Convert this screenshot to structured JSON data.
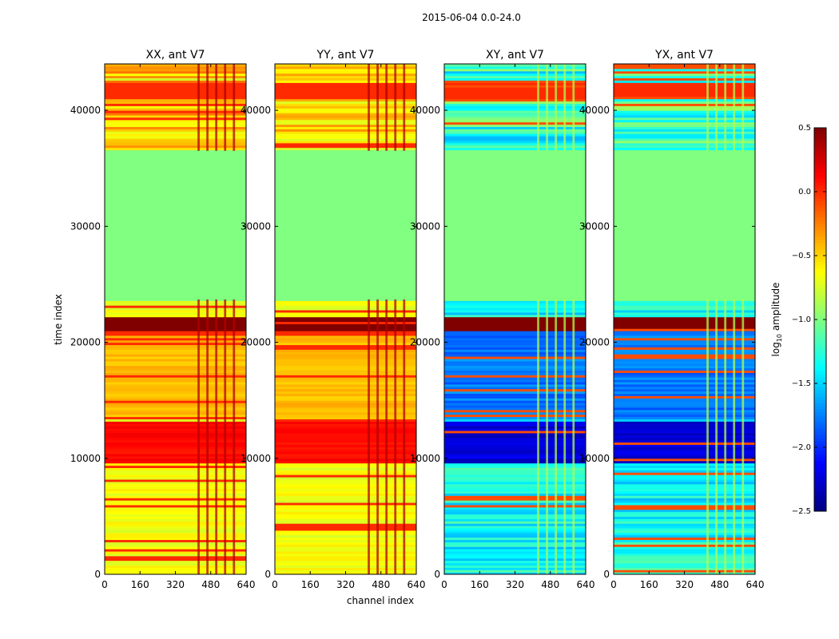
{
  "figure_title": "2015-06-04 0.0-24.0",
  "chart_data": {
    "type": "heatmap",
    "panels": [
      {
        "title": "XX, ant V7",
        "kind": "parallel"
      },
      {
        "title": "YY, ant V7",
        "kind": "parallel"
      },
      {
        "title": "XY, ant V7",
        "kind": "cross"
      },
      {
        "title": "YX, ant V7",
        "kind": "cross"
      }
    ],
    "xlabel": "channel index",
    "ylabel": "time index",
    "x_ticks": [
      "0",
      "160",
      "320",
      "480",
      "640"
    ],
    "x_tick_values": [
      0,
      160,
      320,
      480,
      640
    ],
    "y_ticks": [
      "0",
      "10000",
      "20000",
      "30000",
      "40000"
    ],
    "y_tick_values": [
      0,
      10000,
      20000,
      30000,
      40000
    ],
    "xlim": [
      0,
      640
    ],
    "ylim": [
      0,
      44000
    ],
    "colorbar": {
      "label_main": "log",
      "label_sub": "10",
      "label_rest": " amplitude",
      "ticks": [
        "0.5",
        "0.0",
        "−0.5",
        "−1.0",
        "−1.5",
        "−2.0",
        "−2.5"
      ],
      "tick_values": [
        0.5,
        0.0,
        -0.5,
        -1.0,
        -1.5,
        -2.0,
        -2.5
      ],
      "range": [
        -2.5,
        0.5
      ],
      "colormap": "jet"
    },
    "features": {
      "flagged_time_range": [
        23700,
        36500
      ],
      "flagged_value": -1.0,
      "saturated_band": [
        41000,
        42400
      ],
      "saturated_band_value": 0.0,
      "peak_band": [
        21000,
        22200
      ],
      "peak_band_value": 0.5,
      "rfi_channel_range": [
        400,
        600
      ]
    }
  }
}
